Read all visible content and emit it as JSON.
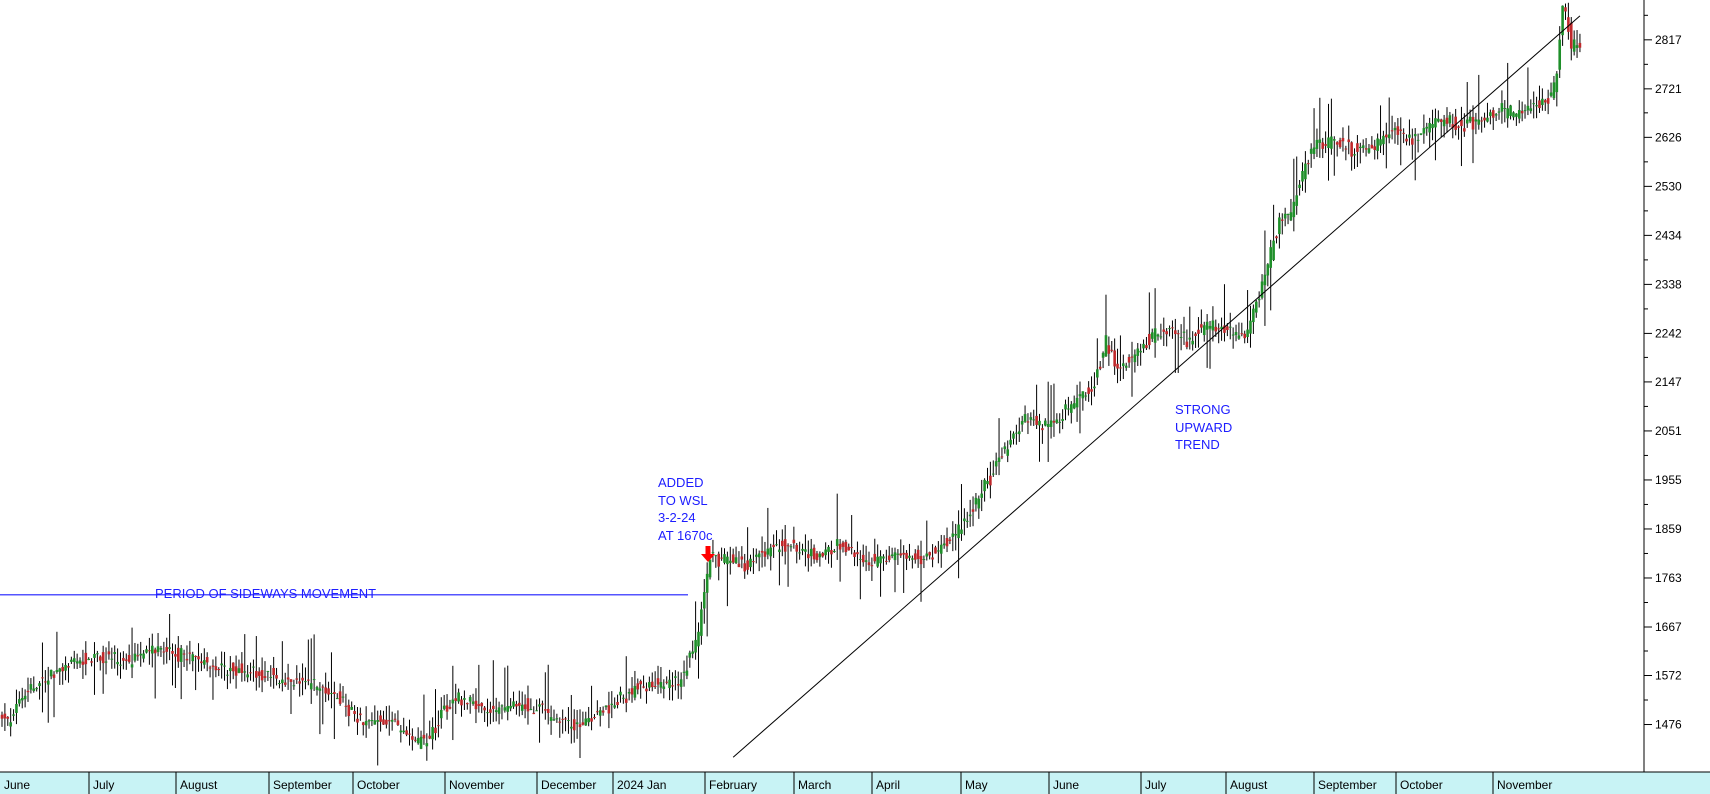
{
  "colors": {
    "up_candle": "#1f8f2a",
    "down_candle": "#c0282b",
    "wick": "#000000",
    "annotation": "#1d1dff",
    "axis_band": "#c8f3f5",
    "arrow": "#ff0000"
  },
  "annotations": {
    "sideways": "PERIOD OF SIDEWAYS MOVEMENT",
    "added": [
      "ADDED",
      "TO WSL",
      "3-2-24",
      "AT 1670c"
    ],
    "trend": [
      "STRONG",
      "UPWARD",
      "TREND"
    ]
  },
  "chart_data": {
    "type": "candlestick",
    "y_ticks": [
      1476,
      1572,
      1667,
      1763,
      1859,
      1955,
      2051,
      2147,
      2242,
      2338,
      2434,
      2530,
      2626,
      2721,
      2817
    ],
    "ylim": [
      1383,
      2895
    ],
    "x_labels": [
      "June",
      "July",
      "August",
      "September",
      "October",
      "November",
      "December",
      "2024 Jan",
      "February",
      "March",
      "April",
      "May",
      "June",
      "July",
      "August",
      "September",
      "October",
      "November"
    ],
    "price_path": [
      [
        0,
        1490
      ],
      [
        3,
        1480
      ],
      [
        5,
        1520
      ],
      [
        10,
        1545
      ],
      [
        20,
        1580
      ],
      [
        30,
        1610
      ],
      [
        42,
        1600
      ],
      [
        55,
        1625
      ],
      [
        65,
        1605
      ],
      [
        75,
        1590
      ],
      [
        90,
        1575
      ],
      [
        100,
        1560
      ],
      [
        108,
        1555
      ],
      [
        116,
        1530
      ],
      [
        125,
        1480
      ],
      [
        135,
        1485
      ],
      [
        142,
        1440
      ],
      [
        148,
        1450
      ],
      [
        152,
        1500
      ],
      [
        158,
        1525
      ],
      [
        170,
        1505
      ],
      [
        180,
        1515
      ],
      [
        190,
        1495
      ],
      [
        198,
        1470
      ],
      [
        206,
        1495
      ],
      [
        213,
        1520
      ],
      [
        220,
        1550
      ],
      [
        228,
        1555
      ],
      [
        234,
        1560
      ],
      [
        240,
        1630
      ],
      [
        242,
        1700
      ],
      [
        245,
        1800
      ],
      [
        250,
        1800
      ],
      [
        258,
        1790
      ],
      [
        262,
        1810
      ],
      [
        270,
        1830
      ],
      [
        282,
        1810
      ],
      [
        290,
        1830
      ],
      [
        298,
        1790
      ],
      [
        304,
        1800
      ],
      [
        310,
        1810
      ],
      [
        318,
        1800
      ],
      [
        324,
        1820
      ],
      [
        330,
        1850
      ],
      [
        336,
        1900
      ],
      [
        342,
        1960
      ],
      [
        348,
        2030
      ],
      [
        354,
        2080
      ],
      [
        360,
        2060
      ],
      [
        366,
        2080
      ],
      [
        372,
        2110
      ],
      [
        378,
        2140
      ],
      [
        382,
        2230
      ],
      [
        386,
        2170
      ],
      [
        392,
        2200
      ],
      [
        398,
        2240
      ],
      [
        404,
        2250
      ],
      [
        410,
        2230
      ],
      [
        418,
        2260
      ],
      [
        424,
        2250
      ],
      [
        430,
        2230
      ],
      [
        434,
        2300
      ],
      [
        438,
        2380
      ],
      [
        442,
        2460
      ],
      [
        446,
        2480
      ],
      [
        450,
        2560
      ],
      [
        454,
        2610
      ],
      [
        460,
        2620
      ],
      [
        468,
        2600
      ],
      [
        476,
        2610
      ],
      [
        482,
        2640
      ],
      [
        488,
        2620
      ],
      [
        494,
        2650
      ],
      [
        500,
        2660
      ],
      [
        506,
        2650
      ],
      [
        512,
        2660
      ],
      [
        518,
        2680
      ],
      [
        524,
        2670
      ],
      [
        530,
        2690
      ],
      [
        536,
        2700
      ],
      [
        538,
        2760
      ],
      [
        540,
        2890
      ],
      [
        543,
        2810
      ],
      [
        546,
        2800
      ]
    ],
    "trendline": [
      [
        253,
        1412
      ],
      [
        546,
        2864
      ]
    ],
    "sideways_level": 1730,
    "signal_marker": {
      "date": "3-2-24",
      "price": 1670
    }
  }
}
